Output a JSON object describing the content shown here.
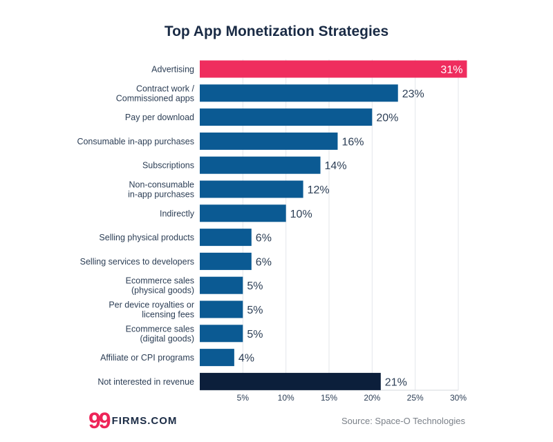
{
  "chart_data": {
    "type": "bar",
    "orientation": "horizontal",
    "title": "Top App Monetization Strategies",
    "categories": [
      "Advertising",
      "Contract work /\nCommissioned apps",
      "Pay per download",
      "Consumable in-app purchases",
      "Subscriptions",
      "Non-consumable\nin-app purchases",
      "Indirectly",
      "Selling physical products",
      "Selling services to developers",
      "Ecommerce sales\n(physical goods)",
      "Per device royalties or\nlicensing fees",
      "Ecommerce sales\n(digital goods)",
      "Affiliate or CPI programs",
      "Not interested in revenue"
    ],
    "values": [
      31,
      23,
      20,
      16,
      14,
      12,
      10,
      6,
      6,
      5,
      5,
      5,
      4,
      21
    ],
    "data_labels": [
      "31%",
      "23%",
      "20%",
      "16%",
      "14%",
      "12%",
      "10%",
      "6%",
      "6%",
      "5%",
      "5%",
      "5%",
      "4%",
      "21%"
    ],
    "xlim": [
      0,
      30
    ],
    "xticks": [
      5,
      10,
      15,
      20,
      25,
      30
    ],
    "xtick_labels": [
      "5%",
      "10%",
      "15%",
      "20%",
      "25%",
      "30%"
    ],
    "grid": true,
    "bar_colors": {
      "highlight": "#ef2d5e",
      "default": "#0b5a93",
      "dark": "#0c1f3b"
    },
    "bar_color_keys": [
      "highlight",
      "default",
      "default",
      "default",
      "default",
      "default",
      "default",
      "default",
      "default",
      "default",
      "default",
      "default",
      "default",
      "dark"
    ]
  },
  "footer": {
    "brand_mark": "99",
    "brand_text": "FIRMS.COM",
    "source": "Source: Space-O Technologies"
  }
}
